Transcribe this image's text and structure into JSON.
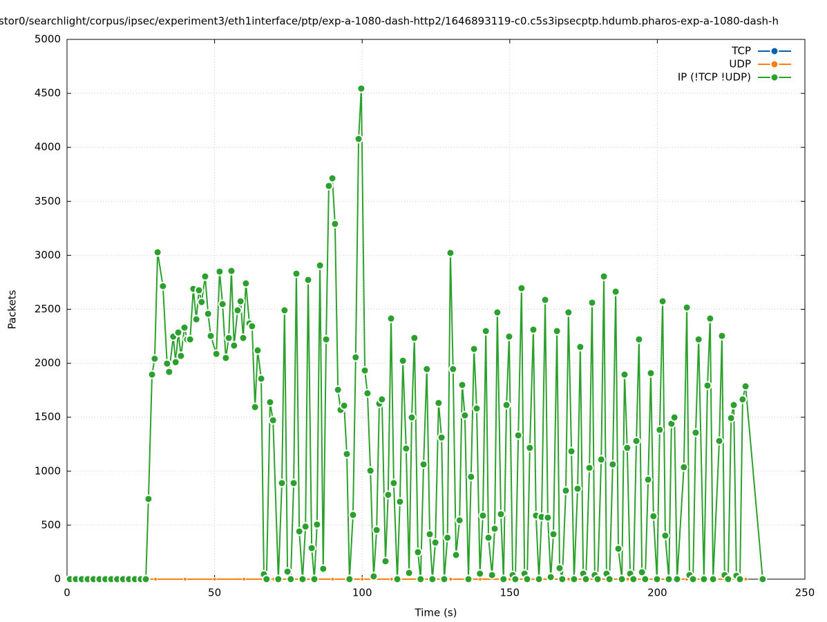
{
  "chart_data": {
    "type": "line",
    "title": "stor0/searchlight/corpus/ipsec/experiment3/eth1interface/ptp/exp-a-1080-dash-http2/1646893119-c0.c5s3ipsecptp.hdumb.pharos-exp-a-1080-dash-h",
    "x_label": "Time (s)",
    "y_label": "Packets",
    "xlim": [
      0,
      250
    ],
    "xticks": [
      0,
      50,
      100,
      150,
      200,
      250
    ],
    "ylim": [
      0,
      5000
    ],
    "yticks": [
      0,
      500,
      1000,
      1500,
      2000,
      2500,
      3000,
      3500,
      4000,
      4500,
      5000
    ],
    "grid": true,
    "legend": "top-right",
    "series": [
      {
        "name": "TCP",
        "color": "#0060ad",
        "x": [
          0,
          10,
          20,
          30,
          40,
          50,
          60,
          70,
          80,
          90,
          100,
          110,
          120,
          130,
          140,
          150,
          160,
          170,
          180,
          190,
          200,
          210,
          220,
          230
        ],
        "values": [
          0,
          0,
          0,
          0,
          0,
          0,
          0,
          0,
          0,
          0,
          0,
          0,
          0,
          0,
          0,
          0,
          0,
          0,
          0,
          0,
          0,
          0,
          0,
          0
        ]
      },
      {
        "name": "UDP",
        "color": "#ff7f0e",
        "x": [
          0,
          10,
          20,
          30,
          40,
          50,
          60,
          70,
          80,
          90,
          100,
          110,
          120,
          130,
          140,
          150,
          160,
          170,
          180,
          190,
          200,
          210,
          220,
          230
        ],
        "values": [
          0,
          0,
          0,
          0,
          0,
          0,
          0,
          0,
          0,
          0,
          0,
          0,
          0,
          0,
          0,
          0,
          0,
          0,
          0,
          0,
          0,
          0,
          0,
          0
        ]
      },
      {
        "name": "IP (!TCP  !UDP)",
        "color": "#2ca02c",
        "x": [
          1,
          3,
          5,
          7,
          9,
          11,
          13,
          15,
          17,
          19,
          21,
          23,
          25,
          26.7,
          27.6,
          28.8,
          29.7,
          30.7,
          32.5,
          33.9,
          34.6,
          36.0,
          36.8,
          37.7,
          38.6,
          39.8,
          40.7,
          41.7,
          42.8,
          43.8,
          44.7,
          45.6,
          46.8,
          47.8,
          48.7,
          50.6,
          51.7,
          52.7,
          53.8,
          54.8,
          55.7,
          56.6,
          57.8,
          58.8,
          59.7,
          60.6,
          61.8,
          62.7,
          63.7,
          64.6,
          65.8,
          66.7,
          67.6,
          68.8,
          69.8,
          71.6,
          72.8,
          73.7,
          74.7,
          75.8,
          76.8,
          77.7,
          78.7,
          79.8,
          80.8,
          81.7,
          82.9,
          83.8,
          84.7,
          85.7,
          86.8,
          87.8,
          88.7,
          89.9,
          90.8,
          91.8,
          92.7,
          93.9,
          94.8,
          95.7,
          96.9,
          97.8,
          98.8,
          99.7,
          100.9,
          101.8,
          102.8,
          103.9,
          104.9,
          105.8,
          106.7,
          107.9,
          108.8,
          109.8,
          110.7,
          111.9,
          112.8,
          113.8,
          114.9,
          115.9,
          116.8,
          117.7,
          118.9,
          119.8,
          120.8,
          121.9,
          122.9,
          123.8,
          124.8,
          125.9,
          126.9,
          127.8,
          128.9,
          129.9,
          130.8,
          131.8,
          133.0,
          133.9,
          134.8,
          136.0,
          136.9,
          137.9,
          138.8,
          139.9,
          140.9,
          141.9,
          142.8,
          144.0,
          144.9,
          145.8,
          147.0,
          147.9,
          148.9,
          149.8,
          151.0,
          151.9,
          152.9,
          154.0,
          155.0,
          155.9,
          156.8,
          158.0,
          158.9,
          159.9,
          160.8,
          162.0,
          162.9,
          163.9,
          164.8,
          166.0,
          166.9,
          167.8,
          169.0,
          169.9,
          170.9,
          171.8,
          173.0,
          173.9,
          174.9,
          175.8,
          177.0,
          177.9,
          178.8,
          179.8,
          181.0,
          181.9,
          182.8,
          183.8,
          184.9,
          185.9,
          186.8,
          188.0,
          188.9,
          189.8,
          190.8,
          191.9,
          192.9,
          193.8,
          194.8,
          195.9,
          196.9,
          197.8,
          198.7,
          199.9,
          200.8,
          201.8,
          202.7,
          203.9,
          204.8,
          205.8,
          206.7,
          209.0,
          210.0,
          210.9,
          212.1,
          213.0,
          214.0,
          215.8,
          217.0,
          217.9,
          218.9,
          221.0,
          221.9,
          222.8,
          224.0,
          225.0,
          225.9,
          226.8,
          228.0,
          228.9,
          229.9,
          235.7
        ],
        "values": [
          0,
          0,
          0,
          0,
          0,
          0,
          0,
          0,
          0,
          0,
          0,
          0,
          0,
          0,
          743,
          1895,
          2042,
          3028,
          2714,
          1997,
          1920,
          2247,
          2010,
          2285,
          2068,
          2330,
          2221,
          2221,
          2689,
          2407,
          2676,
          2567,
          2804,
          2458,
          2253,
          2087,
          2849,
          2548,
          2049,
          2234,
          2855,
          2164,
          2490,
          2574,
          2234,
          2740,
          2369,
          2343,
          1594,
          2119,
          1857,
          45,
          0,
          1639,
          1472,
          0,
          890,
          2490,
          70,
          0,
          890,
          2830,
          442,
          0,
          487,
          2772,
          288,
          0,
          506,
          2906,
          96,
          2221,
          3643,
          3713,
          3291,
          1754,
          1568,
          1607,
          1159,
          0,
          595,
          2055,
          4078,
          4545,
          1933,
          1722,
          1005,
          26,
          455,
          1626,
          1665,
          166,
          781,
          2414,
          890,
          0,
          717,
          2023,
          1210,
          58,
          1498,
          2234,
          250,
          0,
          1063,
          1946,
          416,
          0,
          339,
          1632,
          1312,
          0,
          384,
          3022,
          1946,
          224,
          545,
          1799,
          1517,
          0,
          948,
          2132,
          1581,
          51,
          589,
          2298,
          384,
          38,
          467,
          2471,
          602,
          0,
          1613,
          2247,
          38,
          0,
          1332,
          2695,
          51,
          0,
          1216,
          2311,
          589,
          0,
          576,
          2587,
          570,
          19,
          416,
          2298,
          102,
          0,
          820,
          2471,
          1184,
          0,
          838,
          2151,
          51,
          0,
          1031,
          2561,
          38,
          0,
          1108,
          2804,
          51,
          0,
          1063,
          2663,
          282,
          0,
          1895,
          1216,
          51,
          0,
          1280,
          2221,
          64,
          0,
          922,
          1908,
          583,
          0,
          1383,
          2574,
          403,
          0,
          1440,
          1498,
          0,
          1037,
          2516,
          38,
          0,
          1357,
          2221,
          0,
          1793,
          2414,
          0,
          1280,
          2253,
          38,
          0,
          1492,
          1613,
          32,
          0,
          1665,
          1786,
          0
        ]
      }
    ]
  }
}
